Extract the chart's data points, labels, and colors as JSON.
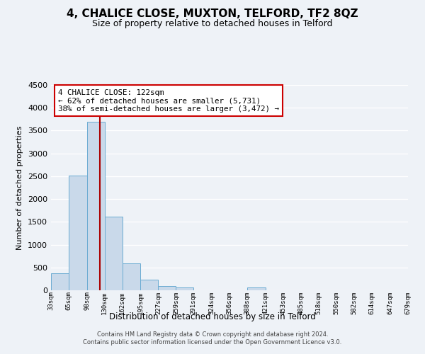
{
  "title": "4, CHALICE CLOSE, MUXTON, TELFORD, TF2 8QZ",
  "subtitle": "Size of property relative to detached houses in Telford",
  "xlabel": "Distribution of detached houses by size in Telford",
  "ylabel": "Number of detached properties",
  "bin_edges": [
    33,
    65,
    98,
    130,
    162,
    195,
    227,
    259,
    291,
    324,
    356,
    388,
    421,
    453,
    485,
    518,
    550,
    582,
    614,
    647,
    679
  ],
  "bar_heights": [
    380,
    2520,
    3700,
    1620,
    590,
    240,
    100,
    55,
    0,
    0,
    0,
    55,
    0,
    0,
    0,
    0,
    0,
    0,
    0,
    0
  ],
  "bar_color": "#c9d9ea",
  "bar_edge_color": "#6aabd2",
  "property_value": 122,
  "vline_color": "#aa0000",
  "annotation_text": "4 CHALICE CLOSE: 122sqm\n← 62% of detached houses are smaller (5,731)\n38% of semi-detached houses are larger (3,472) →",
  "annotation_box_color": "#ffffff",
  "annotation_box_edgecolor": "#cc0000",
  "ylim": [
    0,
    4500
  ],
  "yticks": [
    0,
    500,
    1000,
    1500,
    2000,
    2500,
    3000,
    3500,
    4000,
    4500
  ],
  "tick_labels": [
    "33sqm",
    "65sqm",
    "98sqm",
    "130sqm",
    "162sqm",
    "195sqm",
    "227sqm",
    "259sqm",
    "291sqm",
    "324sqm",
    "356sqm",
    "388sqm",
    "421sqm",
    "453sqm",
    "485sqm",
    "518sqm",
    "550sqm",
    "582sqm",
    "614sqm",
    "647sqm",
    "679sqm"
  ],
  "footer": "Contains HM Land Registry data © Crown copyright and database right 2024.\nContains public sector information licensed under the Open Government Licence v3.0.",
  "bg_color": "#eef2f7",
  "grid_color": "#ffffff",
  "title_fontsize": 11,
  "subtitle_fontsize": 9
}
